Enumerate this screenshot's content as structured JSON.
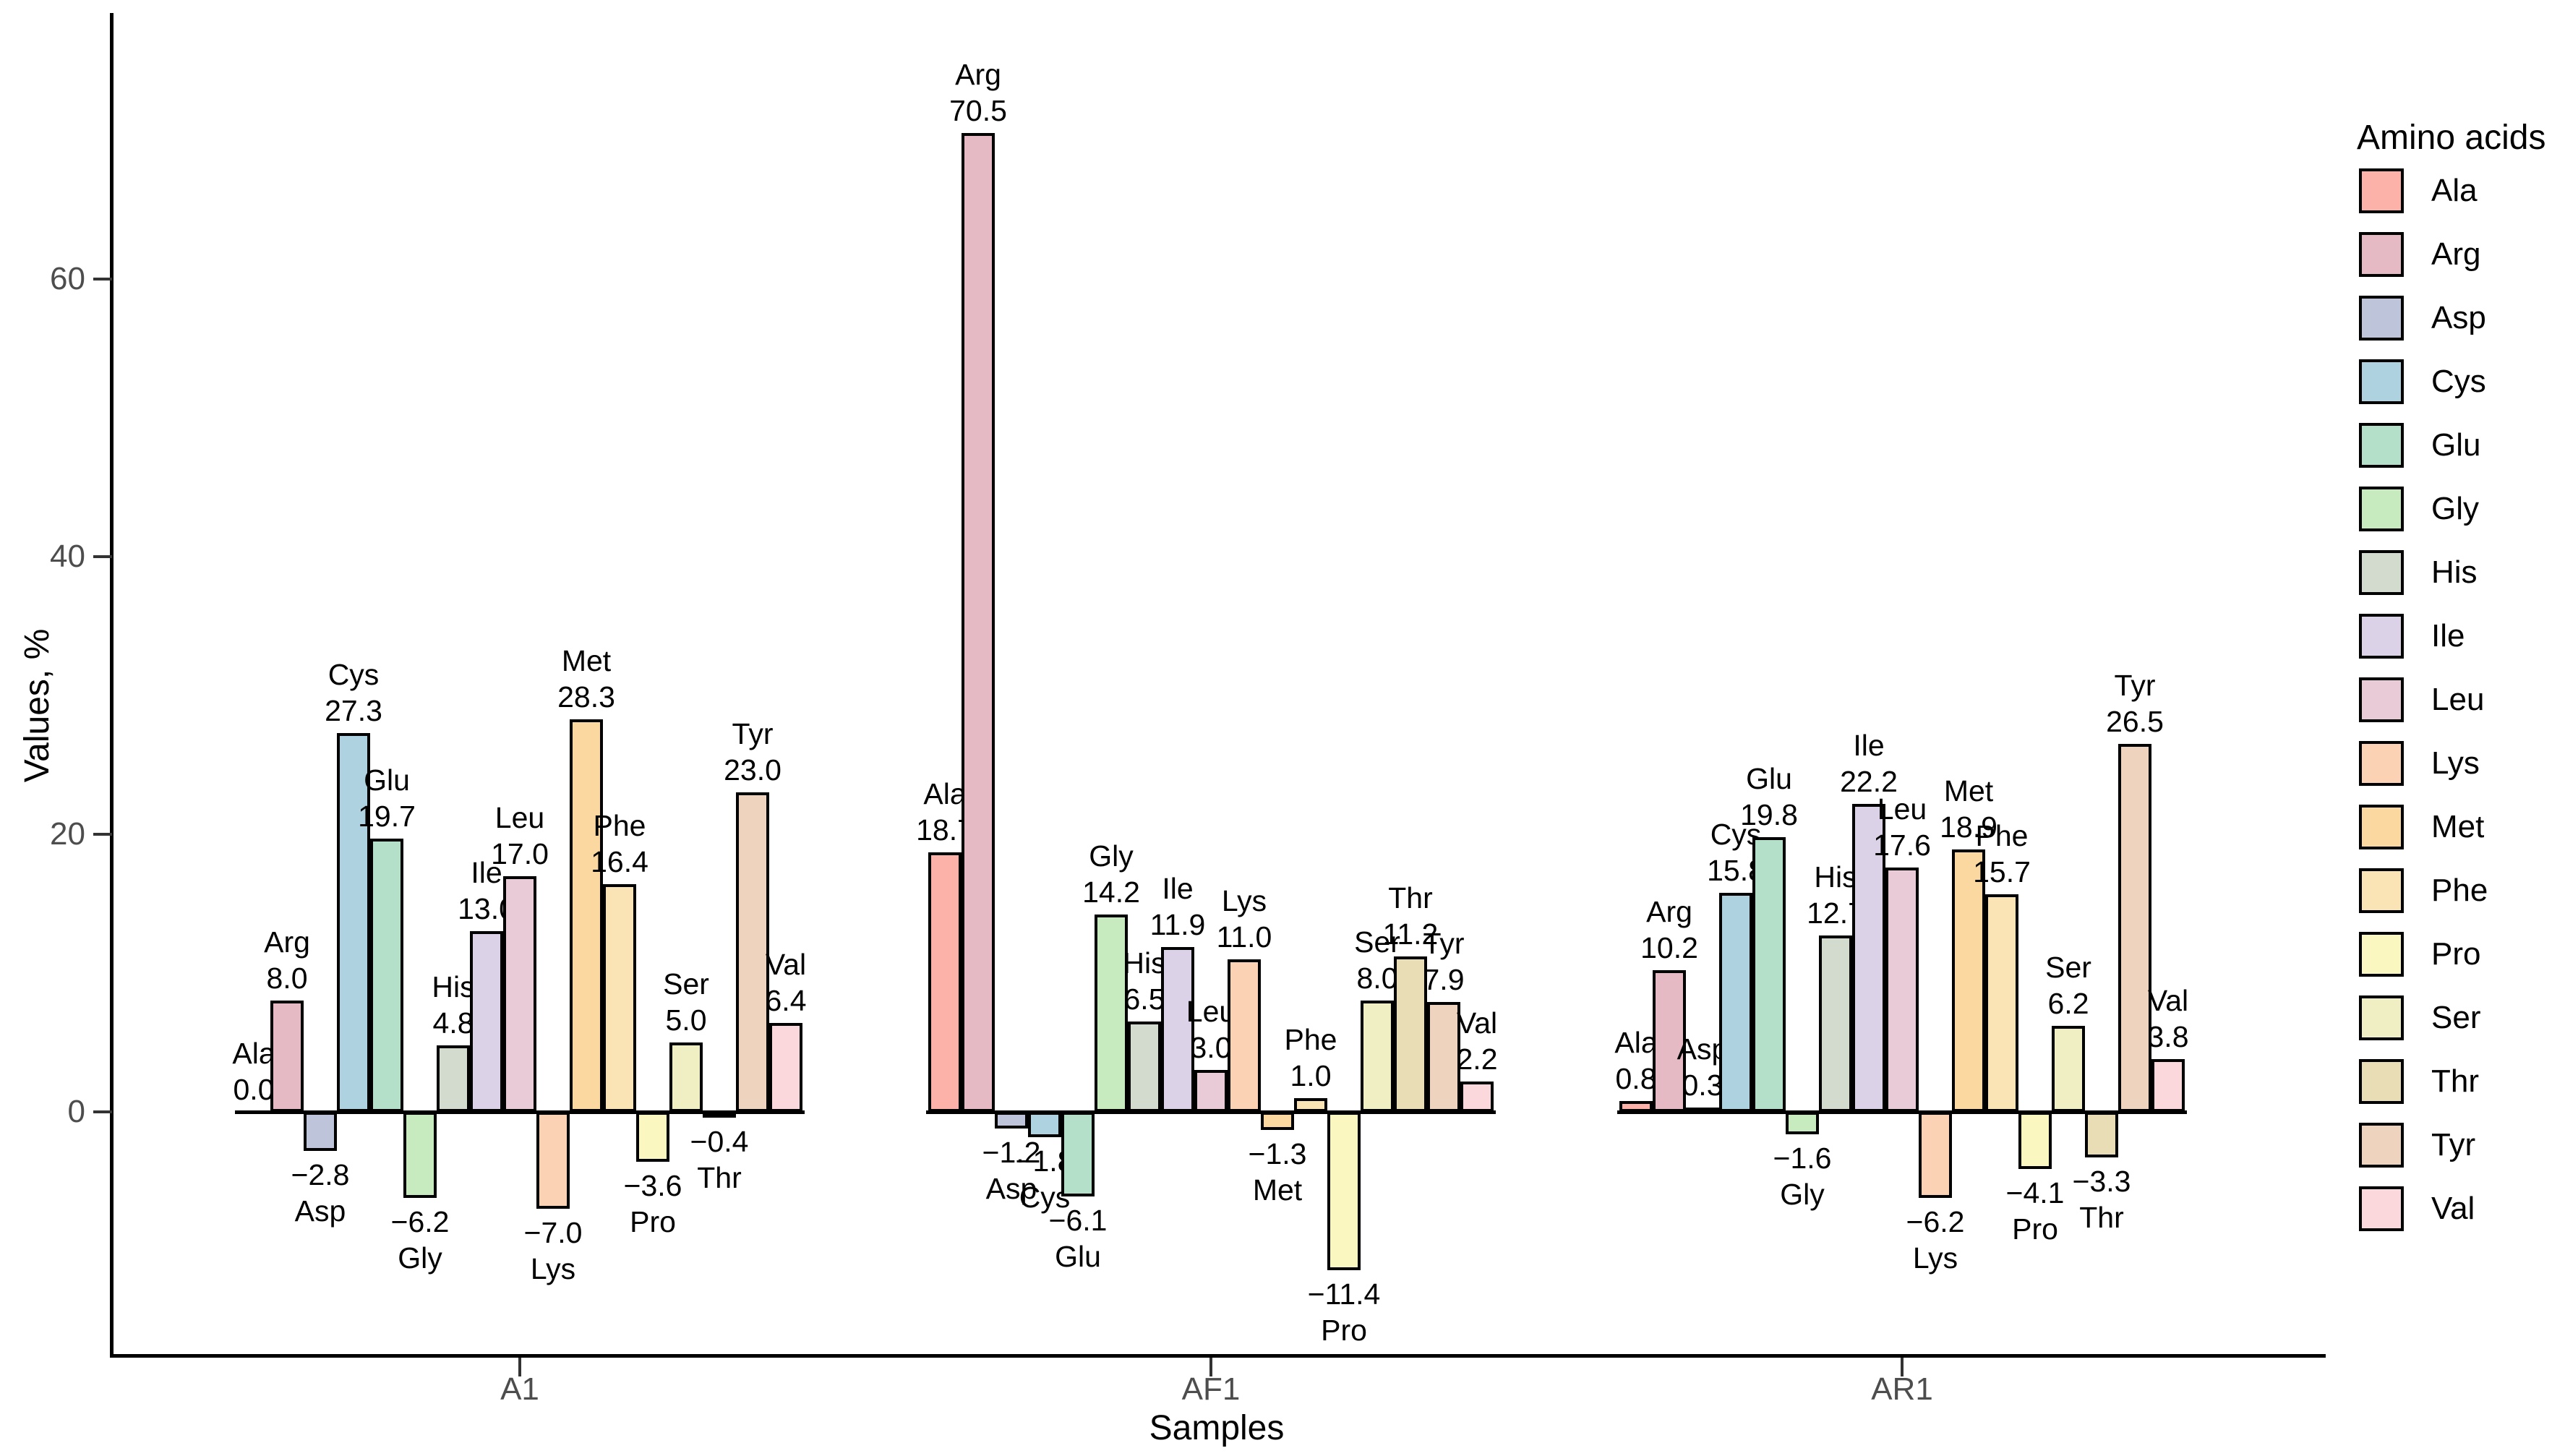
{
  "chart_data": {
    "type": "bar",
    "title": "",
    "xlabel": "Samples",
    "ylabel": "Values, %",
    "legend_title": "Amino acids",
    "legend_position": "right",
    "grid": false,
    "categories": [
      "A1",
      "AF1",
      "AR1"
    ],
    "yticks": [
      0,
      20,
      40,
      60
    ],
    "ylim": [
      -15,
      78
    ],
    "axis_color": "#000000",
    "tick_label_color": "#4d4d4d",
    "bar_outline_color": "#000000",
    "series": [
      {
        "name": "Ala",
        "color": "#FCB2A9",
        "values": [
          0.0,
          18.7,
          0.8
        ]
      },
      {
        "name": "Arg",
        "color": "#E6BAC4",
        "values": [
          8.0,
          70.5,
          10.2
        ]
      },
      {
        "name": "Asp",
        "color": "#BEC5DA",
        "values": [
          -2.8,
          -1.2,
          0.3
        ]
      },
      {
        "name": "Cys",
        "color": "#AED2DF",
        "values": [
          27.3,
          -1.8,
          15.8
        ]
      },
      {
        "name": "Glu",
        "color": "#B4DFC8",
        "values": [
          19.7,
          -6.1,
          19.8
        ]
      },
      {
        "name": "Gly",
        "color": "#C7EBBF",
        "values": [
          -6.2,
          14.2,
          -1.6
        ]
      },
      {
        "name": "His",
        "color": "#D2DBCE",
        "values": [
          4.8,
          6.5,
          12.7
        ]
      },
      {
        "name": "Ile",
        "color": "#DCD2E7",
        "values": [
          13.0,
          11.9,
          22.2
        ]
      },
      {
        "name": "Leu",
        "color": "#E8CBD6",
        "values": [
          17.0,
          3.0,
          17.6
        ]
      },
      {
        "name": "Lys",
        "color": "#FBD2B4",
        "values": [
          -7.0,
          11.0,
          -6.2
        ]
      },
      {
        "name": "Met",
        "color": "#FBD8A0",
        "values": [
          28.3,
          -1.3,
          18.9
        ]
      },
      {
        "name": "Phe",
        "color": "#FAE3B5",
        "values": [
          16.4,
          1.0,
          15.7
        ]
      },
      {
        "name": "Pro",
        "color": "#FAF8C0",
        "values": [
          -3.6,
          -11.4,
          -4.1
        ]
      },
      {
        "name": "Ser",
        "color": "#F0EEC3",
        "values": [
          5.0,
          8.0,
          6.2
        ]
      },
      {
        "name": "Thr",
        "color": "#E8DDB5",
        "values": [
          -0.4,
          11.2,
          -3.3
        ]
      },
      {
        "name": "Tyr",
        "color": "#EED4BE",
        "values": [
          23.0,
          7.9,
          26.5
        ]
      },
      {
        "name": "Val",
        "color": "#FBD8DC",
        "values": [
          6.4,
          2.2,
          3.8
        ]
      }
    ]
  }
}
